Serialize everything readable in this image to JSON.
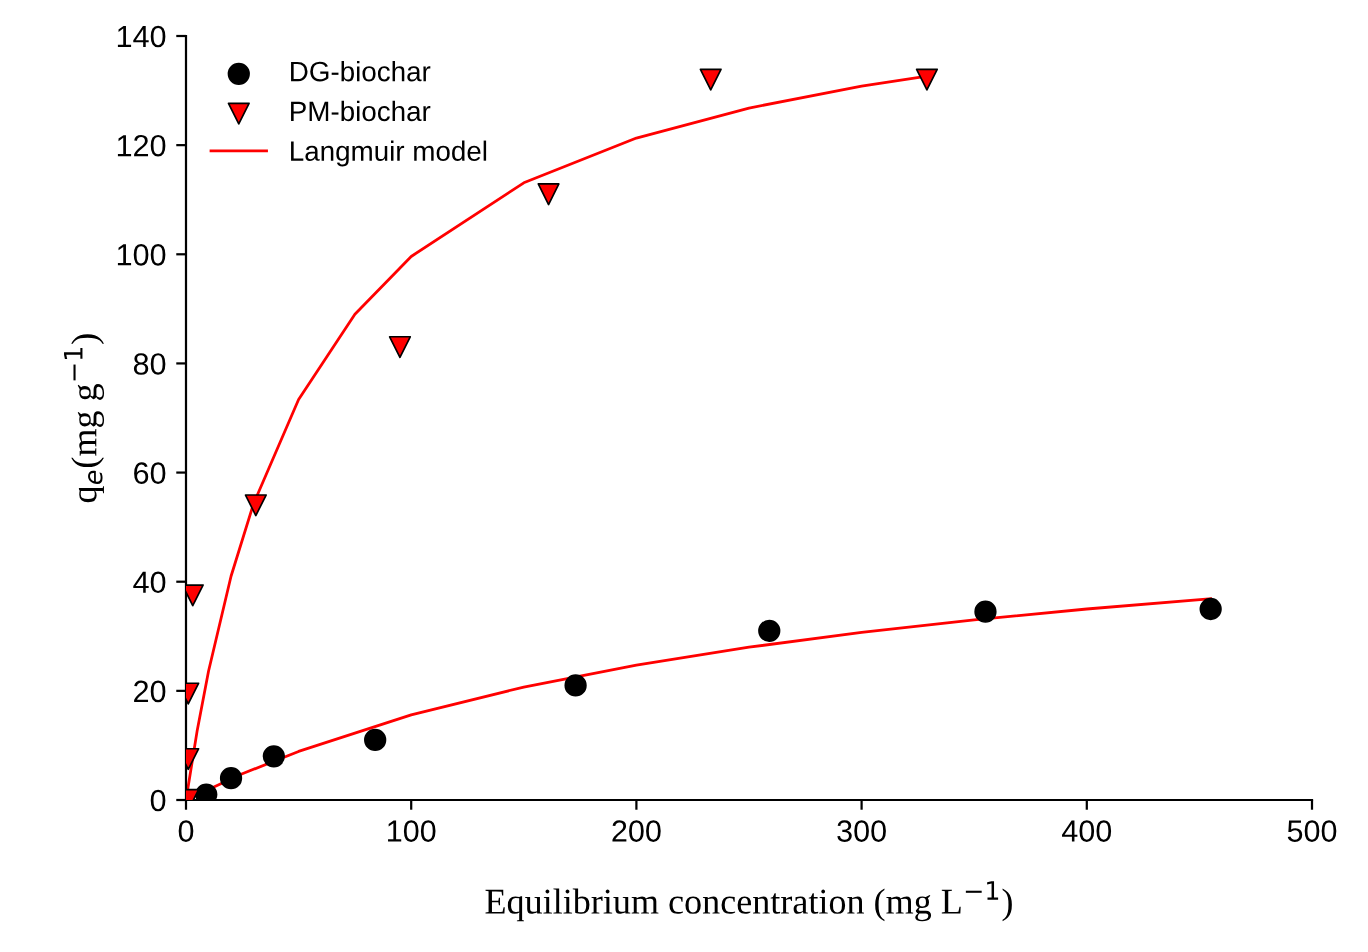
{
  "chart_data": {
    "type": "scatter",
    "xlabel": "Equilibrium concentration (mg L$^{−1}$)",
    "ylabel": "q$_{e}$(mg g$^{−1}$)",
    "xlim": [
      0,
      500
    ],
    "ylim": [
      0,
      140
    ],
    "xticks": [
      0,
      100,
      200,
      300,
      400,
      500
    ],
    "yticks": [
      0,
      20,
      40,
      60,
      80,
      100,
      120,
      140
    ],
    "grid": false,
    "legend": "top left",
    "series": [
      {
        "name": "DG-biochar",
        "marker": "circle",
        "color": "#000000",
        "x": [
          9,
          20,
          39,
          84,
          173,
          259,
          355,
          455
        ],
        "values": [
          1,
          4,
          8,
          11,
          21,
          31,
          34.5,
          35
        ]
      },
      {
        "name": "PM-biochar",
        "marker": "triangle",
        "color": "#ff0000",
        "x": [
          1,
          1,
          1,
          3,
          31,
          95,
          161,
          233,
          329
        ],
        "values": [
          0,
          7.5,
          19.5,
          37.5,
          54,
          83,
          111,
          132,
          132
        ]
      },
      {
        "name": "Langmuir model",
        "type": "line",
        "marker": "none",
        "color": "#ff0000",
        "x": [
          0,
          5,
          10,
          20,
          30,
          50,
          75,
          100,
          150,
          200,
          250,
          300,
          330
        ],
        "values": [
          0,
          12.8,
          23.6,
          41.0,
          54.3,
          73.4,
          89.0,
          99.6,
          113.1,
          121.3,
          126.8,
          130.8,
          132.7
        ]
      },
      {
        "type": "line",
        "marker": "none",
        "color": "#ff0000",
        "x": [
          0,
          25,
          50,
          100,
          150,
          200,
          250,
          300,
          350,
          400,
          455
        ],
        "values": [
          0,
          4.8,
          8.9,
          15.6,
          20.7,
          24.7,
          28.0,
          30.7,
          33.0,
          35.0,
          36.9
        ]
      }
    ]
  }
}
